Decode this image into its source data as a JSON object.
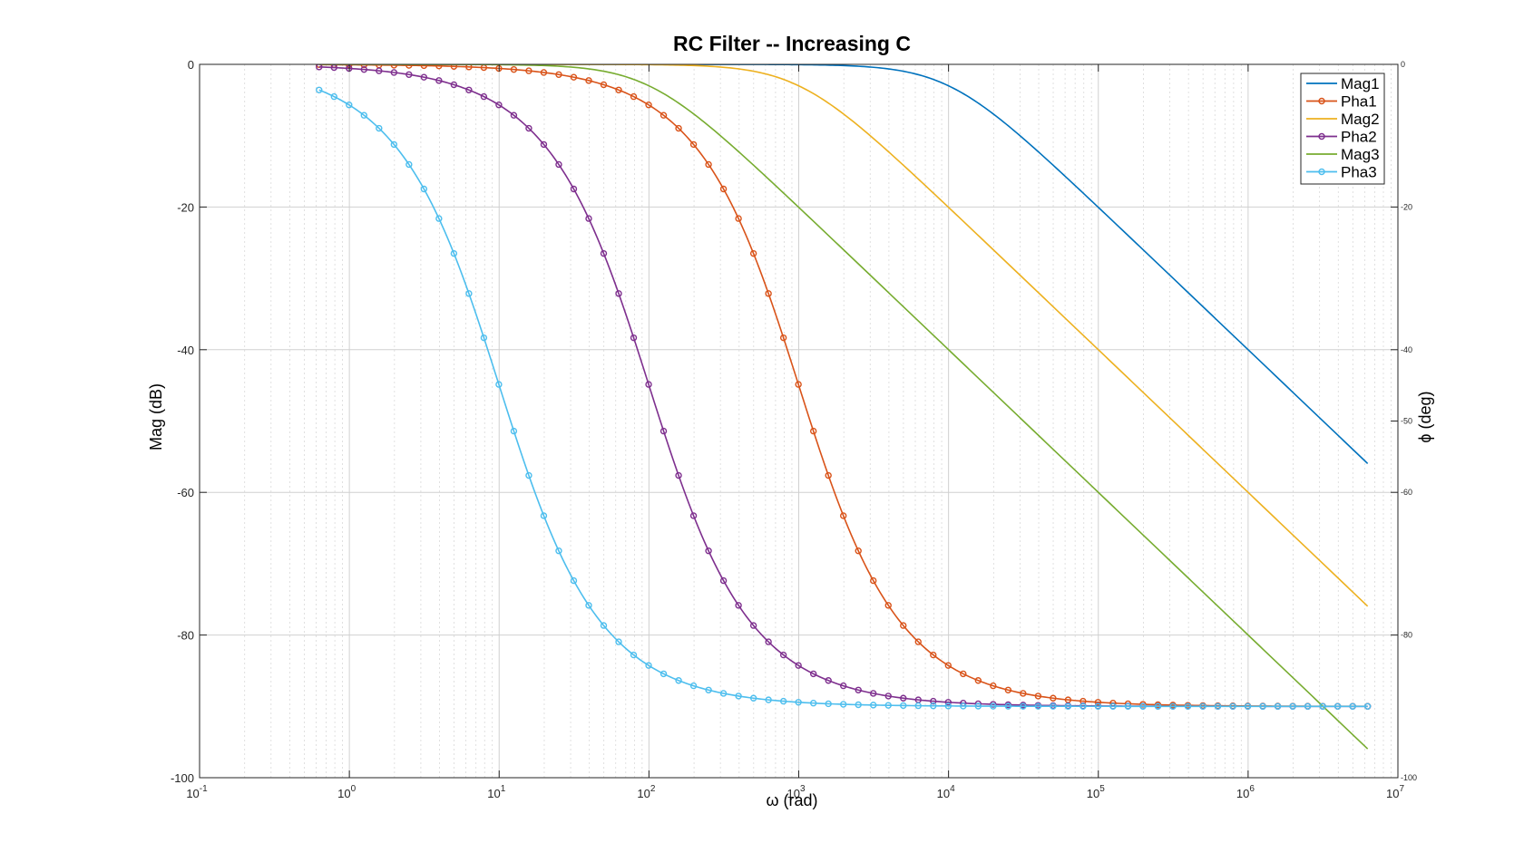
{
  "chart_data": {
    "type": "line",
    "title": "RC Filter -- Increasing C",
    "xlabel": "ω (rad)",
    "ylabel": "Mag (dB)",
    "ylabel_right": "ϕ (deg)",
    "xscale": "log",
    "xlim": [
      0.1,
      10000000
    ],
    "ylim": [
      -100,
      0
    ],
    "grid": true,
    "legend_position": "top-right",
    "x_tick_bases": [
      "10",
      "10",
      "10",
      "10",
      "10",
      "10",
      "10",
      "10",
      "10"
    ],
    "x_tick_exponents": [
      "-1",
      "0",
      "1",
      "2",
      "3",
      "4",
      "5",
      "6",
      "7"
    ],
    "y_ticks_left": [
      "0",
      "-20",
      "-40",
      "-60",
      "-80",
      "-100"
    ],
    "y_ticks_right": [
      "0",
      "-20",
      "-40",
      "-50",
      "-60",
      "-80",
      "-100"
    ],
    "series": [
      {
        "name": "Mag1",
        "kind": "magnitude",
        "corner": 10000,
        "markers": false,
        "color": "#0072BD"
      },
      {
        "name": "Pha1",
        "kind": "phase",
        "corner": 1000,
        "markers": true,
        "color": "#D95319"
      },
      {
        "name": "Mag2",
        "kind": "magnitude",
        "corner": 1000,
        "markers": false,
        "color": "#EDB120"
      },
      {
        "name": "Pha2",
        "kind": "phase",
        "corner": 100,
        "markers": true,
        "color": "#7E2F8E"
      },
      {
        "name": "Mag3",
        "kind": "magnitude",
        "corner": 100,
        "markers": false,
        "color": "#77AC30"
      },
      {
        "name": "Pha3",
        "kind": "phase",
        "corner": 10,
        "markers": true,
        "color": "#4DBEEE"
      }
    ],
    "omega_range": [
      0.628,
      6280000
    ]
  }
}
